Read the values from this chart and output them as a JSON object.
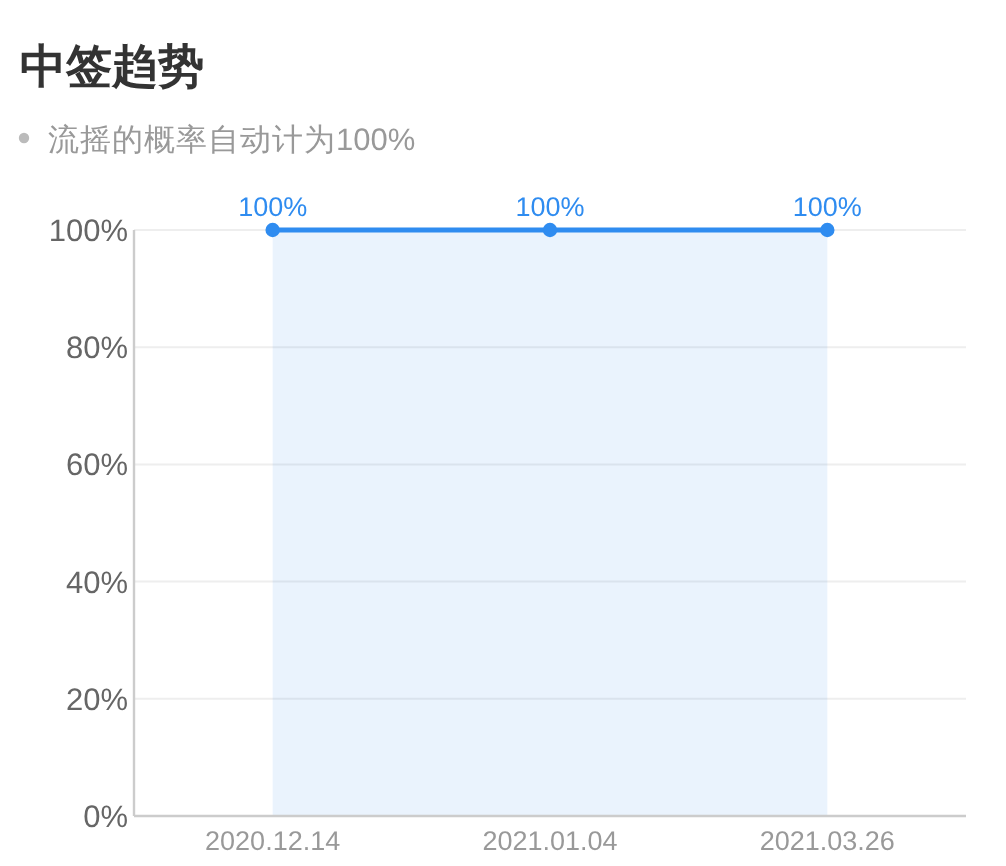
{
  "chart_data": {
    "type": "area",
    "title": "中签趋势",
    "subtitle": "流摇的概率自动计为100%",
    "categories": [
      "2020.12.14",
      "2021.01.04",
      "2021.03.26"
    ],
    "values": [
      100,
      100,
      100
    ],
    "color": "#2f8cf0",
    "value_labels": [
      "100%",
      "100%",
      "100%"
    ],
    "ylim": [
      0,
      100
    ],
    "yticks": [
      {
        "value": 0,
        "label": "0%"
      },
      {
        "value": 20,
        "label": "20%"
      },
      {
        "value": 40,
        "label": "40%"
      },
      {
        "value": 60,
        "label": "60%"
      },
      {
        "value": 80,
        "label": "80%"
      },
      {
        "value": 100,
        "label": "100%"
      }
    ],
    "grid": "y",
    "marker": "circle"
  }
}
